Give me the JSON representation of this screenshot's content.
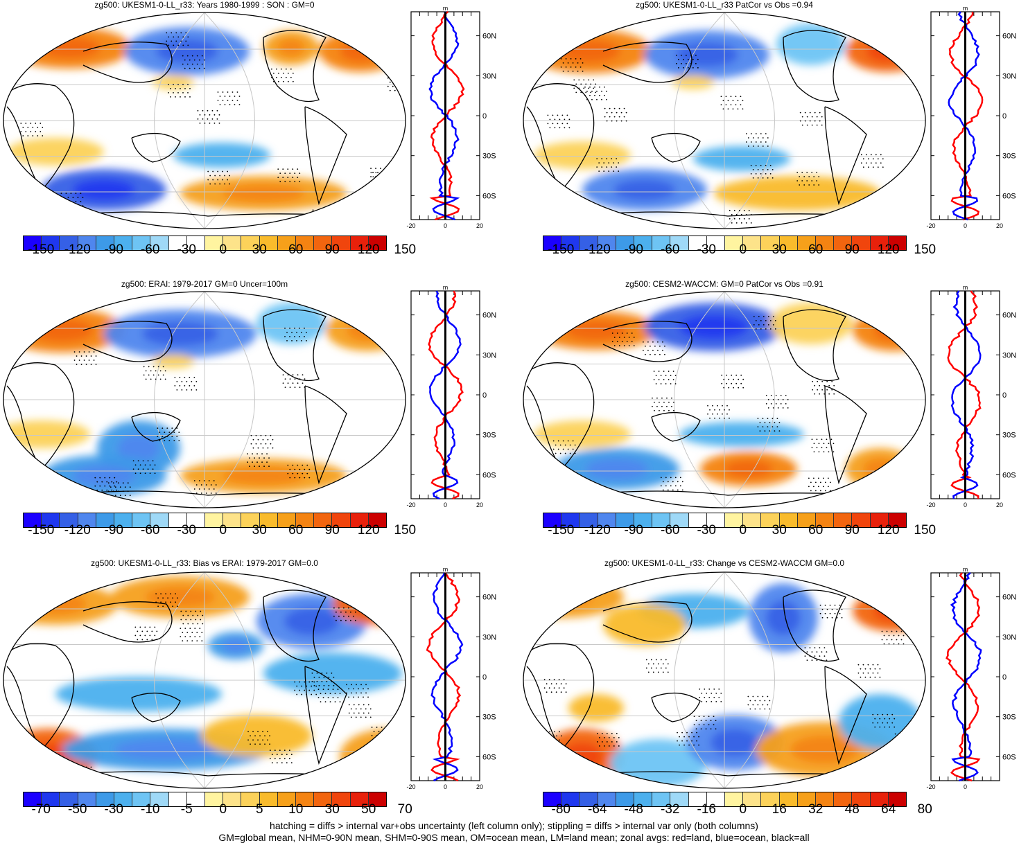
{
  "panels": [
    {
      "title": "zg500: UKESM1-0-LL_r33: Years 1980-1999 : SON : GM=0",
      "scale": "main",
      "seed": 1
    },
    {
      "title": "zg500: UKESM1-0-LL_r33 PatCor vs Obs =0.94",
      "scale": "main",
      "seed": 2
    },
    {
      "title": "zg500: ERAI: 1979-2017 GM=0 Uncer=100m",
      "scale": "main",
      "seed": 3
    },
    {
      "title": "zg500: CESM2-WACCM: GM=0 PatCor vs Obs =0.91",
      "scale": "main",
      "seed": 4
    },
    {
      "title": "zg500: UKESM1-0-LL_r33: Bias vs ERAI: 1979-2017  GM=0.0",
      "scale": "bias",
      "seed": 5
    },
    {
      "title": "zg500: UKESM1-0-LL_r33: Change vs CESM2-WACCM GM=0.0",
      "scale": "change",
      "seed": 6
    }
  ],
  "colorbars": {
    "main": {
      "labels": [
        "-150",
        "-120",
        "-90",
        "-60",
        "-30",
        "0",
        "30",
        "60",
        "90",
        "120",
        "150"
      ]
    },
    "bias": {
      "labels": [
        "-70",
        "-50",
        "-30",
        "-10",
        "-5",
        "0",
        "5",
        "10",
        "30",
        "50",
        "70"
      ]
    },
    "change": {
      "labels": [
        "-80",
        "-64",
        "-48",
        "-32",
        "-16",
        "0",
        "16",
        "32",
        "48",
        "64",
        "80"
      ]
    }
  },
  "zonal_axis": {
    "unit": "m",
    "lat_labels": [
      "60N",
      "30N",
      "0",
      "30S",
      "60S"
    ],
    "x_labels": [
      "-20",
      "0",
      "20"
    ],
    "x_labels_short": [
      "-20",
      "0"
    ]
  },
  "colors": {
    "palette": [
      "#1b00ff",
      "#1f37ef",
      "#3560e6",
      "#4f86ee",
      "#3d9ae8",
      "#4cb0ee",
      "#6ec4f4",
      "#9fd9f7",
      "#ffffff",
      "#ffffff",
      "#fff4a0",
      "#fde38a",
      "#fcd25a",
      "#f9bb2c",
      "#f6a01a",
      "#f48312",
      "#f2650f",
      "#f0450d",
      "#e8210b",
      "#cc0000"
    ],
    "red": "#ff0000",
    "blue": "#0000ff",
    "black": "#000000"
  },
  "footer": {
    "line1": "hatching = diffs > internal var+obs uncertainty (left column only); stippling = diffs > internal var only (both columns)",
    "line2": "GM=global mean, NHM=0-90N mean, SHM=0-90S mean, OM=ocean mean, LM=land mean; zonal avgs: red=land, blue=ocean, black=all"
  }
}
